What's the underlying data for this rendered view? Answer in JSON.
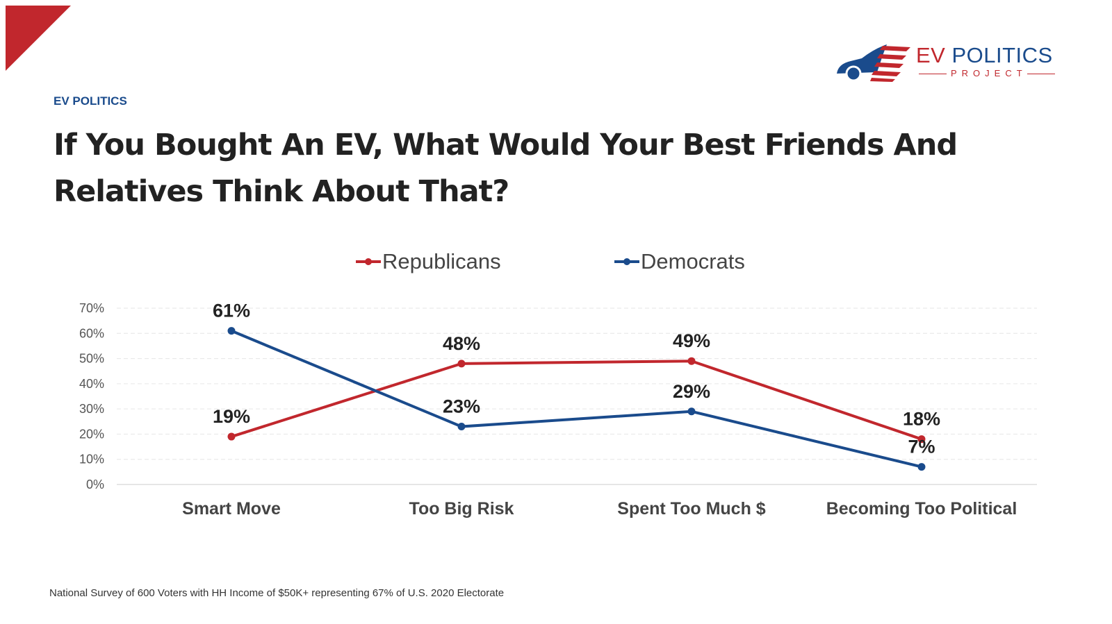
{
  "header": {
    "kicker": "EV POLITICS",
    "title": "If You Bought An EV, What Would Your Best Friends And Relatives Think About That?"
  },
  "logo": {
    "text_main_1": "EV ",
    "text_main_2": "POLITICS",
    "text_sub": "PROJECT"
  },
  "footer": {
    "source": "National Survey of 600 Voters with HH Income of $50K+ representing 67% of U.S. 2020 Electorate"
  },
  "colors": {
    "republicans": "#c1272d",
    "democrats": "#1a4b8c",
    "brand_red": "#c1272d",
    "brand_blue": "#1a4b8c"
  },
  "chart_data": {
    "type": "line",
    "categories": [
      "Smart Move",
      "Too Big Risk",
      "Spent Too Much $",
      "Becoming Too Political"
    ],
    "series": [
      {
        "name": "Republicans",
        "values": [
          19,
          48,
          49,
          18
        ],
        "color": "#c1272d"
      },
      {
        "name": "Democrats",
        "values": [
          61,
          23,
          29,
          7
        ],
        "color": "#1a4b8c"
      }
    ],
    "yticks": [
      "0%",
      "10%",
      "20%",
      "30%",
      "40%",
      "50%",
      "60%",
      "70%"
    ],
    "ylim": [
      0,
      70
    ],
    "grid": true,
    "legend": "top",
    "data_labels": true
  }
}
